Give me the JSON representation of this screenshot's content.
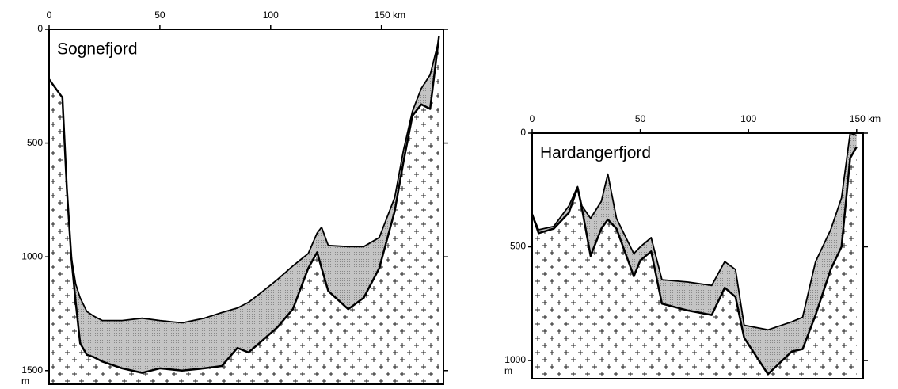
{
  "chart_data": [
    {
      "type": "profile",
      "title": "Sognefjord",
      "y_unit": "m",
      "x": [
        0,
        6,
        8,
        10,
        12,
        14,
        17,
        20,
        24,
        33,
        42,
        50,
        60,
        70,
        78,
        85,
        90,
        96,
        103,
        110,
        117,
        121,
        123,
        126,
        135,
        142,
        149,
        156,
        160,
        164,
        168,
        172,
        176
      ],
      "series": [
        {
          "color": "#000000",
          "values": [
            220,
            300,
            700,
            1000,
            1120,
            1180,
            1240,
            1260,
            1280,
            1280,
            1270,
            1280,
            1290,
            1270,
            1245,
            1225,
            1200,
            1155,
            1100,
            1040,
            985,
            895,
            870,
            950,
            955,
            955,
            915,
            740,
            530,
            360,
            260,
            200,
            45
          ]
        },
        {
          "color": "#000000",
          "values": [
            220,
            300,
            700,
            1000,
            1200,
            1380,
            1430,
            1440,
            1460,
            1490,
            1510,
            1490,
            1500,
            1490,
            1480,
            1400,
            1420,
            1370,
            1310,
            1230,
            1050,
            980,
            1050,
            1150,
            1230,
            1180,
            1050,
            800,
            580,
            380,
            330,
            350,
            30
          ]
        }
      ],
      "xlim": [
        0,
        178
      ],
      "xticks": [
        0,
        50,
        100,
        {
          "value": 150,
          "label": "150 km"
        }
      ],
      "ylim": [
        0,
        1560
      ],
      "yticks": [
        0,
        500,
        1000,
        1500
      ]
    },
    {
      "type": "profile",
      "title": "Hardangerfjord",
      "y_unit": "m",
      "x": [
        0,
        3,
        10,
        17,
        21,
        23,
        27,
        32,
        35,
        39,
        47,
        50,
        55,
        60,
        72,
        83,
        89,
        94,
        98,
        109,
        120,
        125,
        131,
        138,
        143,
        147,
        150
      ],
      "series": [
        {
          "color": "#000000",
          "values": [
            357,
            425,
            410,
            320,
            235,
            320,
            375,
            300,
            180,
            375,
            530,
            500,
            460,
            645,
            655,
            670,
            565,
            600,
            845,
            865,
            830,
            810,
            565,
            425,
            285,
            0,
            10
          ]
        },
        {
          "color": "#000000",
          "values": [
            357,
            440,
            420,
            350,
            240,
            330,
            540,
            420,
            380,
            420,
            630,
            560,
            520,
            750,
            780,
            800,
            680,
            720,
            900,
            1060,
            960,
            950,
            800,
            600,
            500,
            110,
            60
          ]
        }
      ],
      "xlim": [
        0,
        153
      ],
      "xticks": [
        0,
        50,
        100,
        {
          "value": 150,
          "label": "150 km"
        }
      ],
      "ylim": [
        0,
        1080
      ],
      "yticks": [
        0,
        500,
        1000
      ]
    }
  ]
}
